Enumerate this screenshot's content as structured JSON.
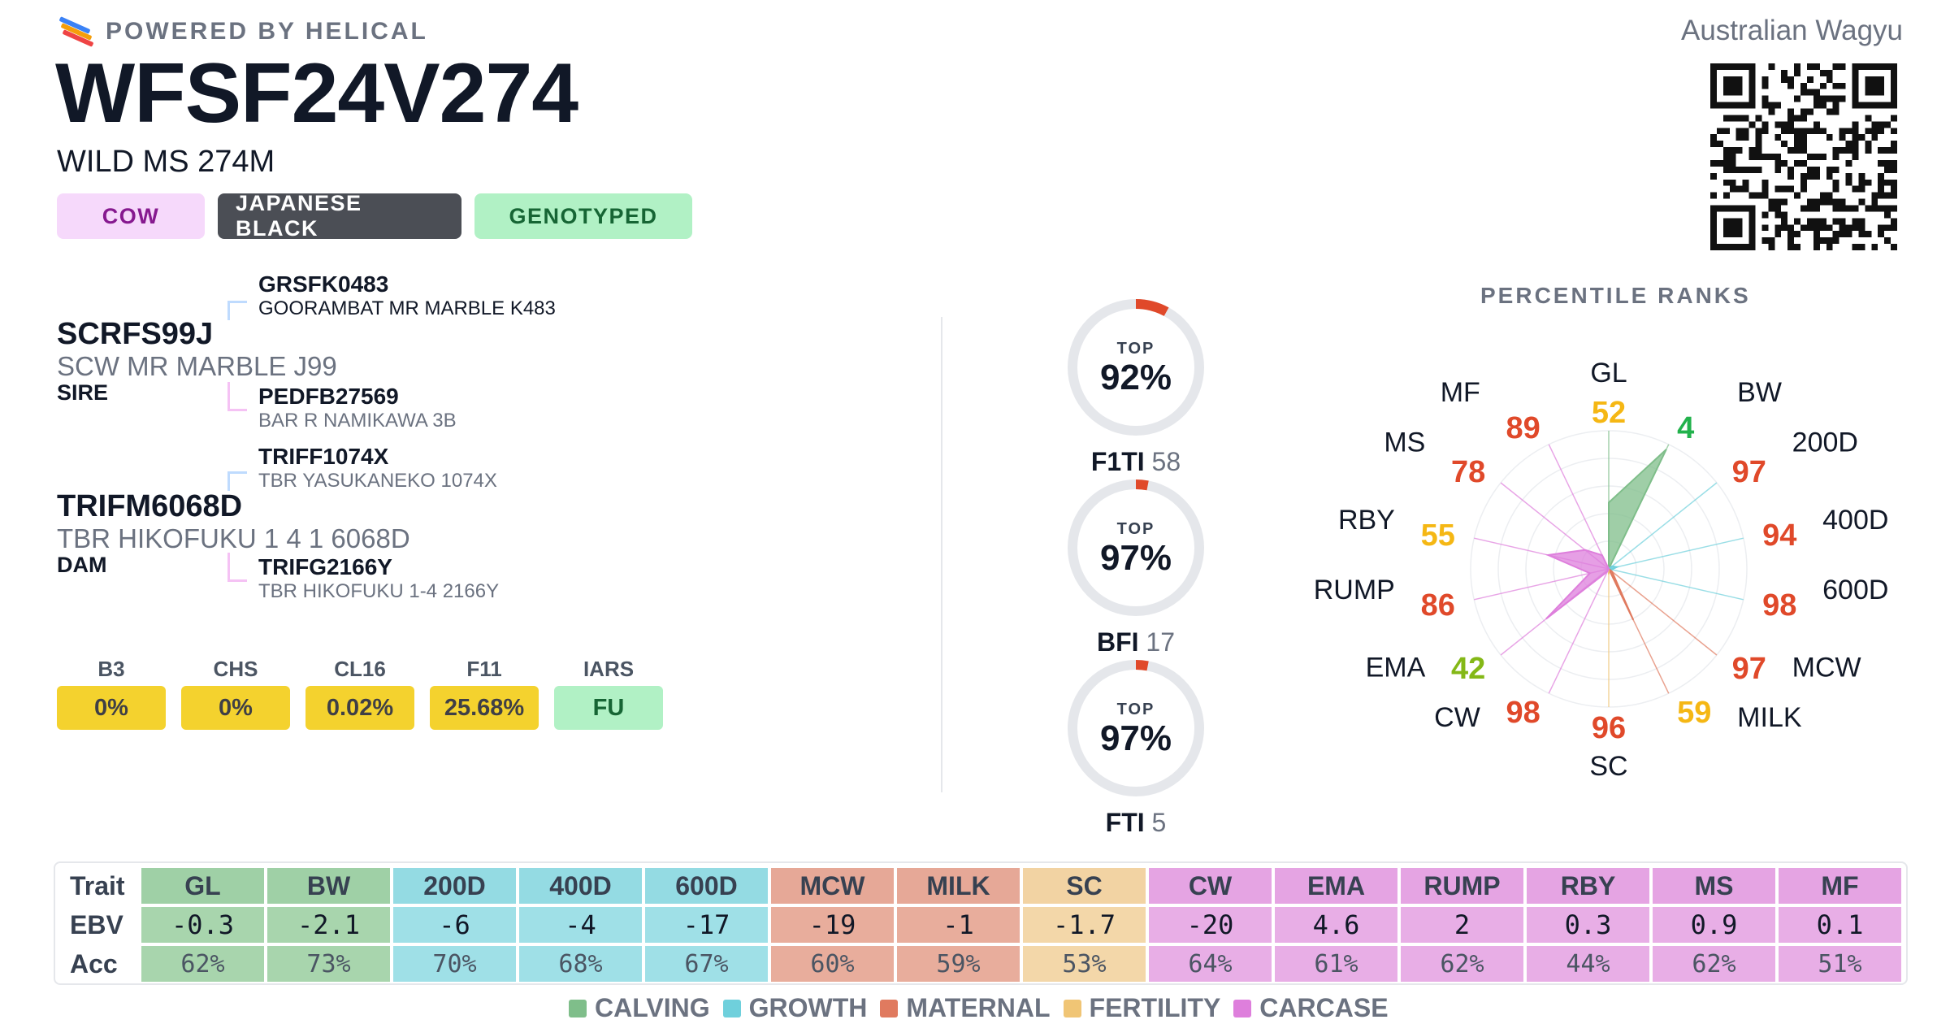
{
  "header": {
    "powered_by": "POWERED BY HELICAL",
    "animal_id": "WFSF24V274",
    "animal_name": "WILD MS 274M",
    "breed_society": "Australian Wagyu",
    "badges": [
      {
        "label": "COW",
        "kind": "sex"
      },
      {
        "label": "JAPANESE BLACK",
        "kind": "breed"
      },
      {
        "label": "GENOTYPED",
        "kind": "status"
      }
    ]
  },
  "pedigree": {
    "sire": {
      "id": "SCRFS99J",
      "name": "SCW MR MARBLE J99",
      "role": "SIRE",
      "sire": {
        "id": "GRSFK0483",
        "name": "GOORAMBAT MR MARBLE K483"
      },
      "dam": {
        "id": "PEDFB27569",
        "name": "BAR R NAMIKAWA 3B"
      }
    },
    "dam": {
      "id": "TRIFM6068D",
      "name": "TBR HIKOFUKU 1 4 1 6068D",
      "role": "DAM",
      "sire": {
        "id": "TRIFF1074X",
        "name": "TBR YASUKANEKO 1074X"
      },
      "dam": {
        "id": "TRIFG2166Y",
        "name": "TBR HIKOFUKU 1-4 2166Y"
      }
    }
  },
  "conditions": [
    {
      "label": "B3",
      "value": "0%",
      "color": "#f4d22e"
    },
    {
      "label": "CHS",
      "value": "0%",
      "color": "#f4d22e"
    },
    {
      "label": "CL16",
      "value": "0.02%",
      "color": "#f4d22e"
    },
    {
      "label": "F11",
      "value": "25.68%",
      "color": "#f4d22e"
    },
    {
      "label": "IARS",
      "value": "FU",
      "color": "#b1f1c5"
    }
  ],
  "indexes": [
    {
      "top_label": "TOP",
      "percent": "92%",
      "name": "F1TI",
      "value": "58",
      "fraction": 0.08
    },
    {
      "top_label": "TOP",
      "percent": "97%",
      "name": "BFI",
      "value": "17",
      "fraction": 0.03
    },
    {
      "top_label": "TOP",
      "percent": "97%",
      "name": "FTI",
      "value": "5",
      "fraction": 0.03
    }
  ],
  "radar": {
    "title": "PERCENTILE RANKS",
    "traits": [
      {
        "name": "GL",
        "rank": 52,
        "group": "calving"
      },
      {
        "name": "BW",
        "rank": 4,
        "group": "calving"
      },
      {
        "name": "200D",
        "rank": 97,
        "group": "growth"
      },
      {
        "name": "400D",
        "rank": 94,
        "group": "growth"
      },
      {
        "name": "600D",
        "rank": 98,
        "group": "growth"
      },
      {
        "name": "MCW",
        "rank": 97,
        "group": "maternal"
      },
      {
        "name": "MILK",
        "rank": 59,
        "group": "maternal"
      },
      {
        "name": "SC",
        "rank": 96,
        "group": "fertility"
      },
      {
        "name": "CW",
        "rank": 98,
        "group": "carcase"
      },
      {
        "name": "EMA",
        "rank": 42,
        "group": "carcase"
      },
      {
        "name": "RUMP",
        "rank": 86,
        "group": "carcase"
      },
      {
        "name": "RBY",
        "rank": 55,
        "group": "carcase"
      },
      {
        "name": "MS",
        "rank": 78,
        "group": "carcase"
      },
      {
        "name": "MF",
        "rank": 89,
        "group": "carcase"
      }
    ]
  },
  "table": {
    "row_labels": [
      "Trait",
      "EBV",
      "Acc"
    ],
    "traits": [
      "GL",
      "BW",
      "200D",
      "400D",
      "600D",
      "MCW",
      "MILK",
      "SC",
      "CW",
      "EMA",
      "RUMP",
      "RBY",
      "MS",
      "MF"
    ],
    "ebv": [
      "-0.3",
      "-2.1",
      "-6",
      "-4",
      "-17",
      "-19",
      "-1",
      "-1.7",
      "-20",
      "4.6",
      "2",
      "0.3",
      "0.9",
      "0.1"
    ],
    "acc": [
      "62%",
      "73%",
      "70%",
      "68%",
      "67%",
      "60%",
      "59%",
      "53%",
      "64%",
      "61%",
      "62%",
      "44%",
      "62%",
      "51%"
    ],
    "groups": [
      "calving",
      "calving",
      "growth",
      "growth",
      "growth",
      "maternal",
      "maternal",
      "fertility",
      "carcase",
      "carcase",
      "carcase",
      "carcase",
      "carcase",
      "carcase"
    ]
  },
  "legend": [
    {
      "label": "CALVING",
      "group": "calving"
    },
    {
      "label": "GROWTH",
      "group": "growth"
    },
    {
      "label": "MATERNAL",
      "group": "maternal"
    },
    {
      "label": "FERTILITY",
      "group": "fertility"
    },
    {
      "label": "CARCASE",
      "group": "carcase"
    }
  ],
  "colors": {
    "calving_head": "#9fd0a6",
    "calving_cell": "#a8d5ad",
    "growth_head": "#94dbe3",
    "growth_cell": "#9fe0e7",
    "maternal_head": "#e6a897",
    "maternal_cell": "#e8ad9c",
    "fertility_head": "#f2d3a3",
    "fertility_cell": "#f3d7a9",
    "carcase_head": "#e5a4e3",
    "carcase_cell": "#e8aee6",
    "legend_calving": "#7fbe8a",
    "legend_growth": "#6fd0dc",
    "legend_maternal": "#e07a5f",
    "legend_fertility": "#f0c575",
    "legend_carcase": "#de7fdc",
    "rank_red": "#e0492a",
    "rank_orange": "#f5b714",
    "rank_green": "#84b817",
    "rank_brightgreen": "#22b24c",
    "gauge_track": "#e5e7eb",
    "gauge_fill": "#e0492a"
  }
}
